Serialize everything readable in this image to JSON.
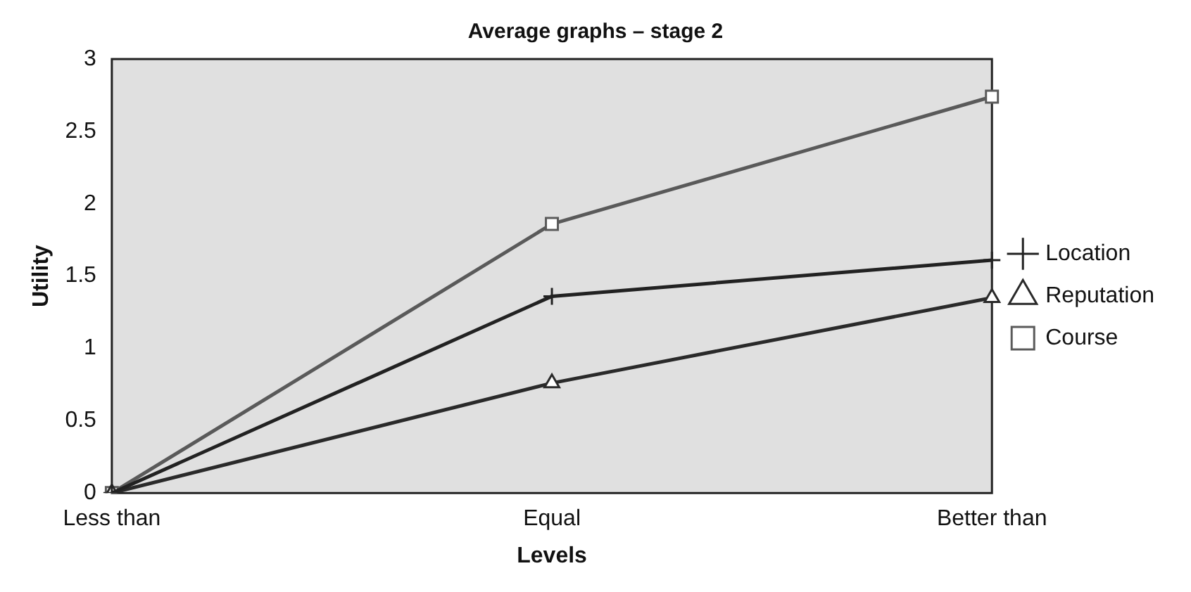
{
  "chart_data": {
    "type": "line",
    "title": "Average graphs – stage 2",
    "xlabel": "Levels",
    "ylabel": "Utility",
    "categories": [
      "Less than",
      "Equal",
      "Better than"
    ],
    "series": [
      {
        "name": "Location",
        "color": "#222222",
        "marker": "cross",
        "values": [
          0,
          1.36,
          1.61
        ]
      },
      {
        "name": "Reputation",
        "color": "#2a2a2a",
        "marker": "triangle",
        "values": [
          0,
          0.76,
          1.35
        ]
      },
      {
        "name": "Course",
        "color": "#5a5a5a",
        "marker": "square",
        "values": [
          0,
          1.86,
          2.74
        ]
      }
    ],
    "ylim": [
      0,
      3
    ],
    "yticks": [
      0,
      0.5,
      1,
      1.5,
      2,
      2.5,
      3
    ],
    "grid": false,
    "legend": "right",
    "line_style": "solid"
  }
}
